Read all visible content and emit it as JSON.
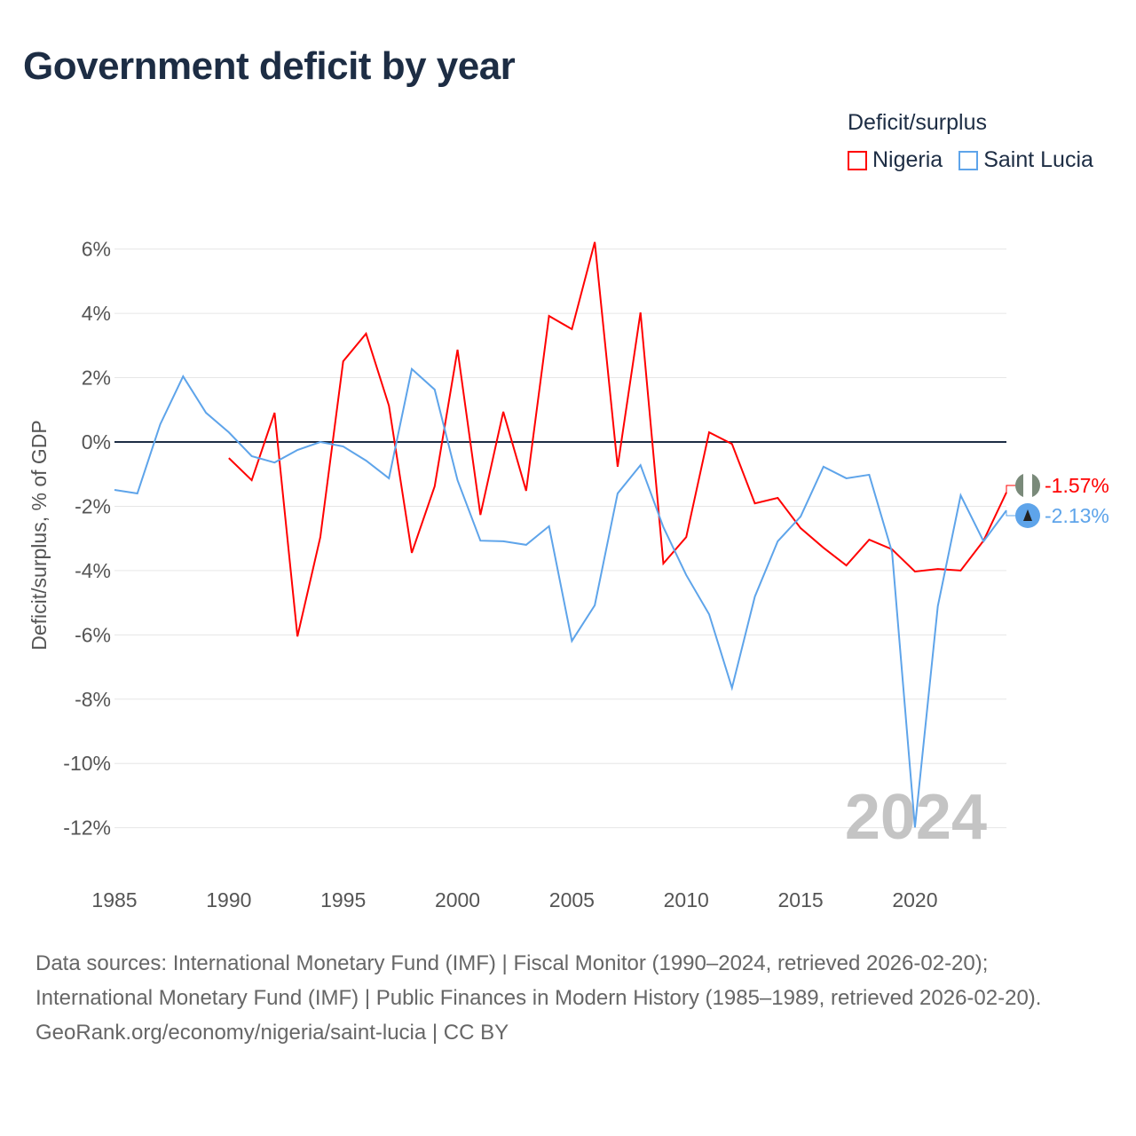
{
  "title": "Government deficit by year",
  "legend": {
    "title": "Deficit/surplus",
    "items": [
      {
        "label": "Nigeria",
        "color": "#ff0000"
      },
      {
        "label": "Saint Lucia",
        "color": "#5ea4ea"
      }
    ]
  },
  "footer": {
    "line1": "Data sources: International Monetary Fund (IMF) | Fiscal Monitor (1990–2024, retrieved 2026-02-20); International Monetary Fund (IMF) | Public Finances in Modern History (1985–1989, retrieved 2026-02-20).",
    "line2": "GeoRank.org/economy/nigeria/saint-lucia | CC BY"
  },
  "chart_data": {
    "type": "line",
    "title": "Government deficit by year",
    "xlabel": "",
    "ylabel": "Deficit/surplus, % of GDP",
    "xlim": [
      1985,
      2024
    ],
    "ylim": [
      -12,
      6
    ],
    "year_watermark": "2024",
    "yticks": [
      6,
      4,
      2,
      0,
      -2,
      -4,
      -6,
      -8,
      -10,
      -12
    ],
    "ytick_labels": [
      "6%",
      "4%",
      "2%",
      "0%",
      "-2%",
      "-4%",
      "-6%",
      "-8%",
      "-10%",
      "-12%"
    ],
    "xticks": [
      "1985",
      "1990",
      "1995",
      "2000",
      "2005",
      "2010",
      "2015",
      "2020"
    ],
    "series": [
      {
        "name": "Nigeria",
        "color": "#ff0000",
        "end_label": "-1.57%",
        "start": 1990,
        "values": [
          -0.5,
          -1.19,
          0.91,
          -6.05,
          -2.96,
          2.51,
          3.37,
          1.13,
          -3.45,
          -1.38,
          2.87,
          -2.27,
          0.94,
          -1.52,
          3.92,
          3.51,
          6.22,
          -0.77,
          4.03,
          -3.78,
          -2.96,
          0.3,
          -0.06,
          -1.91,
          -1.74,
          -2.68,
          -3.29,
          -3.84,
          -3.04,
          -3.34,
          -4.03,
          -3.95,
          -4.0,
          -3.07,
          -1.57
        ]
      },
      {
        "name": "Saint Lucia",
        "color": "#5ea4ea",
        "end_label": "-2.13%",
        "start": 1985,
        "values": [
          -1.49,
          -1.6,
          0.55,
          2.04,
          0.91,
          0.3,
          -0.44,
          -0.64,
          -0.25,
          0,
          -0.14,
          -0.58,
          -1.13,
          2.27,
          1.63,
          -1.19,
          -3.07,
          -3.09,
          -3.2,
          -2.62,
          -6.19,
          -5.08,
          -1.6,
          -0.72,
          -2.65,
          -4.14,
          -5.36,
          -7.65,
          -4.81,
          -3.09,
          -2.32,
          -0.77,
          -1.13,
          -1.02,
          -3.43,
          -11.99,
          -5.11,
          -1.66,
          -3.09,
          -2.13
        ]
      }
    ]
  }
}
